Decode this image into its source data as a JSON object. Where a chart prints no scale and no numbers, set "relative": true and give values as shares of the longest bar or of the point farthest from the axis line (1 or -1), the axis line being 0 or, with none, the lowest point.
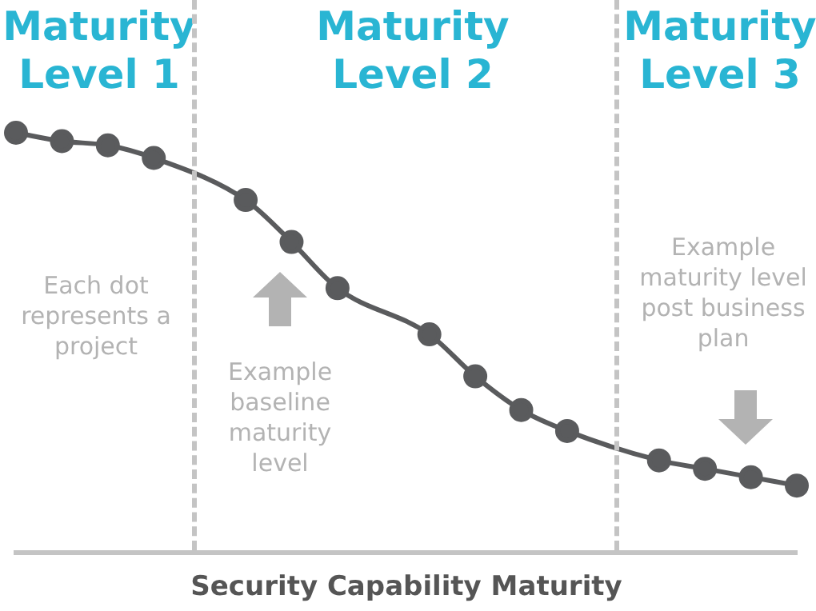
{
  "chart_data": {
    "type": "line",
    "relative": true,
    "marker": "circle",
    "grid": false,
    "legend": false,
    "categories": [
      null,
      null,
      null,
      null,
      null,
      null,
      null,
      null,
      null,
      null,
      null,
      null,
      null,
      null,
      null,
      null,
      null,
      null
    ],
    "series": [
      {
        "color": "#5a5b5d",
        "values": [
          1,
          0.98,
          0.97,
          0.94,
          null,
          0.84,
          0.74,
          0.63,
          null,
          0.52,
          0.42,
          0.34,
          0.29,
          null,
          0.22,
          0.2,
          0.18,
          0.16
        ]
      }
    ],
    "xlabel": "Security Capability Maturity",
    "annotations": [
      "Maturity Level 1",
      "Maturity Level 2",
      "Maturity Level 3",
      "Each dot represents a project",
      "Example baseline maturity level",
      "Example maturity level post business plan"
    ]
  }
}
